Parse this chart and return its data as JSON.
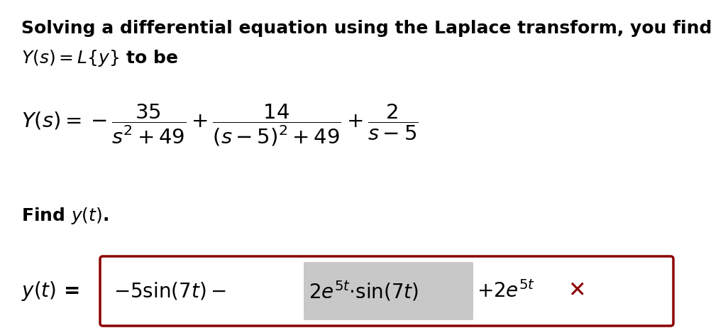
{
  "bg_color": "#ffffff",
  "text_color": "#000000",
  "dark_red": "#8B0000",
  "highlight_color": "#c8c8c8",
  "box_color": "#8B0000",
  "fontsize_intro": 18,
  "fontsize_main": 21,
  "fontsize_find": 18,
  "fontsize_answer": 20
}
